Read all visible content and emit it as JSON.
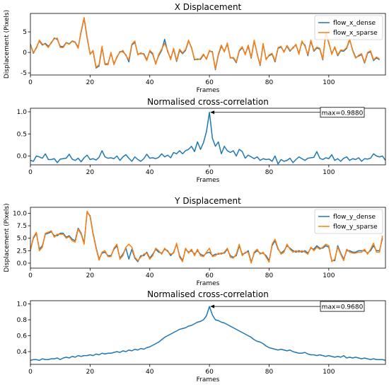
{
  "colors": {
    "dense": "#1f77b4",
    "sparse": "#ff7f0e"
  },
  "chart_data": [
    {
      "type": "line",
      "title": "X Displacement",
      "xlabel": "Frames",
      "ylabel": "Displacement (Pixels)",
      "xlim": [
        0,
        119
      ],
      "ylim": [
        -5.5,
        9.5
      ],
      "xticks": [
        0,
        20,
        40,
        60,
        80,
        100
      ],
      "yticks": [
        -5,
        0,
        5
      ],
      "legend": "upper-right",
      "series": [
        {
          "name": "flow_x_dense",
          "values": [
            2.0,
            -0.2,
            1.2,
            2.8,
            1.8,
            2.2,
            1.5,
            2.3,
            3.5,
            3.2,
            1.5,
            1.4,
            2.4,
            2.1,
            2.8,
            2.5,
            1.2,
            5.0,
            8.3,
            3.5,
            -0.3,
            0.3,
            -3.8,
            -3.3,
            1.2,
            -2.8,
            -2.8,
            -0.2,
            -2.8,
            -1.2,
            0.2,
            0.2,
            -0.6,
            -2.3,
            1.8,
            2.5,
            -0.4,
            -0.3,
            -0.3,
            -1.8,
            0.3,
            -0.5,
            -2.7,
            -0.8,
            0.5,
            3.2,
            0.2,
            -1.5,
            0.8,
            -2.2,
            0.5,
            -0.3,
            0.5,
            2.8,
            1.2,
            -1.8,
            -1.6,
            -1.7,
            -0.6,
            -1.5,
            0.3,
            0.2,
            -4.2,
            -0.6,
            1.5,
            0.3,
            2.0,
            -1.2,
            -1.4,
            -2.5,
            0.3,
            1.2,
            -0.4,
            1.5,
            -1.4,
            2.8,
            -0.3,
            -3.2,
            2.0,
            -1.6,
            -0.8,
            -0.4,
            -2.3,
            1.0,
            1.3,
            0.2,
            1.5,
            0.3,
            1.2,
            1.8,
            -0.3,
            2.5,
            1.8,
            -0.8,
            2.8,
            0.3,
            1.1,
            0.8,
            -1.8,
            4.8,
            2.3,
            -0.3,
            1.2,
            -0.8,
            0.4,
            0.3,
            1.0,
            3.1,
            0.6,
            -1.2,
            -0.9,
            -0.5,
            -2.6,
            -0.2,
            0.2,
            -2.0,
            -1.3,
            -1.8
          ],
          "color_key": "dense"
        },
        {
          "name": "flow_x_sparse",
          "values": [
            1.8,
            0.0,
            1.0,
            3.0,
            2.0,
            2.0,
            1.2,
            2.5,
            3.3,
            3.5,
            1.2,
            1.2,
            2.3,
            2.0,
            2.7,
            2.4,
            1.0,
            5.2,
            8.5,
            3.8,
            -0.5,
            0.5,
            -3.6,
            -3.0,
            1.5,
            -3.0,
            -3.0,
            0.0,
            -3.0,
            -1.0,
            0.0,
            0.5,
            -0.8,
            -1.8,
            2.0,
            2.8,
            -0.6,
            -0.1,
            -0.5,
            -2.0,
            0.5,
            -0.2,
            -2.9,
            -0.5,
            0.8,
            2.2,
            0.5,
            -1.8,
            1.0,
            -2.0,
            0.8,
            -0.1,
            0.7,
            3.0,
            1.0,
            -1.6,
            -1.8,
            -1.5,
            -0.4,
            -1.7,
            0.5,
            0.0,
            -4.0,
            -0.4,
            1.8,
            0.1,
            2.3,
            -1.4,
            -1.2,
            -2.3,
            0.5,
            1.4,
            -0.6,
            1.8,
            -1.2,
            3.0,
            -0.5,
            -3.0,
            2.2,
            -1.8,
            -0.6,
            -0.2,
            -2.1,
            1.2,
            1.5,
            0.0,
            1.7,
            0.5,
            1.0,
            2.0,
            -0.5,
            2.8,
            1.5,
            -0.5,
            3.0,
            0.5,
            1.3,
            1.0,
            -1.6,
            4.5,
            2.5,
            -0.5,
            1.4,
            -0.6,
            0.6,
            0.5,
            1.2,
            3.3,
            0.4,
            -1.4,
            -0.7,
            -0.3,
            -2.4,
            0.0,
            0.4,
            -1.8,
            -1.1,
            -1.6
          ],
          "color_key": "sparse"
        }
      ]
    },
    {
      "type": "line",
      "title": "Normalised cross-correlation",
      "xlabel": "Frames",
      "xlim": [
        0,
        119
      ],
      "ylim": [
        -0.2,
        1.08
      ],
      "xticks": [
        0,
        20,
        40,
        60,
        80,
        100
      ],
      "yticks": [
        0.0,
        0.5,
        1.0
      ],
      "annotation": {
        "text": "max=0.9880",
        "x": 60,
        "y": 0.988
      },
      "series": [
        {
          "values": [
            -0.1,
            -0.12,
            0.0,
            -0.02,
            -0.05,
            0.05,
            -0.08,
            -0.08,
            -0.06,
            -0.15,
            -0.07,
            -0.06,
            -0.05,
            0.04,
            -0.07,
            -0.1,
            -0.05,
            -0.13,
            -0.04,
            0.02,
            -0.08,
            -0.06,
            -0.09,
            -0.03,
            0.12,
            -0.02,
            -0.05,
            -0.04,
            -0.06,
            0.0,
            -0.1,
            -0.02,
            0.03,
            -0.05,
            -0.12,
            -0.02,
            -0.08,
            -0.12,
            -0.06,
            0.04,
            -0.05,
            -0.04,
            -0.06,
            -0.03,
            0.05,
            -0.02,
            0.02,
            -0.04,
            0.08,
            0.05,
            0.12,
            0.05,
            0.12,
            0.15,
            0.22,
            0.1,
            0.32,
            0.15,
            0.3,
            0.55,
            0.988,
            0.4,
            0.22,
            0.32,
            0.05,
            0.22,
            0.12,
            0.08,
            0.12,
            0.0,
            0.15,
            0.1,
            -0.05,
            0.02,
            -0.02,
            -0.06,
            -0.02,
            -0.1,
            -0.06,
            -0.08,
            -0.07,
            -0.12,
            0.0,
            -0.18,
            -0.08,
            -0.12,
            -0.1,
            -0.05,
            -0.15,
            -0.08,
            -0.02,
            -0.06,
            -0.1,
            -0.05,
            -0.04,
            -0.03,
            0.1,
            -0.05,
            -0.08,
            -0.04,
            -0.06,
            0.03,
            -0.1,
            -0.06,
            -0.12,
            -0.05,
            -0.02,
            -0.1,
            -0.06,
            -0.08,
            -0.04,
            -0.12,
            -0.06,
            -0.07,
            -0.05,
            0.05,
            0.0,
            -0.02,
            0.0,
            -0.1
          ],
          "color_key": "dense"
        }
      ]
    },
    {
      "type": "line",
      "title": "Y Displacement",
      "xlabel": "Frames",
      "ylabel": "Displacement (Pixels)",
      "xlim": [
        0,
        119
      ],
      "ylim": [
        -1.0,
        11.2
      ],
      "xticks": [
        0,
        20,
        40,
        60,
        80,
        100
      ],
      "yticks": [
        0.0,
        2.5,
        5.0,
        7.5,
        10.0
      ],
      "legend": "upper-right",
      "series": [
        {
          "name": "flow_y_dense",
          "values": [
            2.8,
            5.0,
            6.0,
            2.8,
            3.5,
            5.8,
            6.0,
            6.3,
            5.5,
            5.5,
            6.0,
            6.0,
            5.2,
            5.5,
            4.8,
            4.5,
            7.0,
            6.0,
            4.0,
            10.2,
            9.5,
            6.0,
            3.2,
            0.8,
            2.0,
            2.2,
            1.5,
            1.5,
            2.8,
            3.5,
            1.0,
            1.8,
            3.0,
            0.8,
            2.8,
            1.0,
            0.3,
            1.5,
            1.5,
            2.2,
            1.0,
            1.8,
            2.8,
            2.2,
            2.0,
            2.8,
            2.5,
            1.5,
            2.2,
            3.8,
            1.5,
            0.5,
            2.8,
            2.2,
            2.5,
            1.8,
            2.5,
            1.8,
            1.5,
            2.0,
            2.2,
            1.5,
            1.8,
            1.8,
            2.0,
            2.0,
            2.8,
            1.5,
            1.2,
            1.5,
            3.5,
            1.8,
            2.0,
            2.5,
            0.2,
            2.0,
            2.5,
            2.0,
            2.0,
            1.5,
            0.5,
            3.5,
            4.5,
            2.8,
            2.0,
            2.5,
            3.5,
            3.0,
            2.5,
            2.2,
            2.5,
            2.2,
            2.5,
            2.0,
            3.0,
            2.8,
            3.5,
            3.0,
            3.0,
            3.5,
            3.2,
            0.5,
            0.5,
            3.5,
            2.0,
            0.8,
            2.5,
            2.5,
            2.2,
            2.2,
            2.5,
            2.5,
            2.5,
            2.0,
            2.5,
            3.5,
            2.5,
            2.5,
            5.0
          ],
          "color_key": "dense"
        },
        {
          "name": "flow_y_sparse",
          "values": [
            2.5,
            5.2,
            6.2,
            2.5,
            3.2,
            6.0,
            6.2,
            6.5,
            5.2,
            5.8,
            5.8,
            5.8,
            5.0,
            5.3,
            4.5,
            4.2,
            6.8,
            5.8,
            3.8,
            10.4,
            9.3,
            5.8,
            3.0,
            0.6,
            2.2,
            2.5,
            1.3,
            1.3,
            3.0,
            3.8,
            0.8,
            1.5,
            3.2,
            3.8,
            3.2,
            1.2,
            0.5,
            1.2,
            1.8,
            2.0,
            0.8,
            1.5,
            3.0,
            2.5,
            1.8,
            3.0,
            2.3,
            1.8,
            2.0,
            4.0,
            1.2,
            0.3,
            3.0,
            2.0,
            2.8,
            1.5,
            2.8,
            1.5,
            1.3,
            2.2,
            3.0,
            1.3,
            1.5,
            2.0,
            1.8,
            2.2,
            3.0,
            1.2,
            1.0,
            1.8,
            3.8,
            1.5,
            2.2,
            2.2,
            0.0,
            2.2,
            2.8,
            1.8,
            2.2,
            1.2,
            0.2,
            3.8,
            4.8,
            3.0,
            1.8,
            2.2,
            3.8,
            2.8,
            2.2,
            2.5,
            2.2,
            2.5,
            2.2,
            1.8,
            3.2,
            2.5,
            3.2,
            2.8,
            3.2,
            3.8,
            3.5,
            0.3,
            0.8,
            3.2,
            1.8,
            0.5,
            2.8,
            2.2,
            2.0,
            2.0,
            2.2,
            2.2,
            2.8,
            1.8,
            2.8,
            4.0,
            2.2,
            2.2,
            5.5
          ],
          "color_key": "sparse"
        }
      ]
    },
    {
      "type": "line",
      "title": "Normalised cross-correlation",
      "xlabel": "Frames",
      "xlim": [
        0,
        119
      ],
      "ylim": [
        0.24,
        1.04
      ],
      "xticks": [
        0,
        20,
        40,
        60,
        80,
        100
      ],
      "yticks": [
        0.4,
        0.6,
        0.8,
        1.0
      ],
      "annotation": {
        "text": "max=0.9680",
        "x": 60,
        "y": 0.968
      },
      "series": [
        {
          "values": [
            0.29,
            0.3,
            0.3,
            0.29,
            0.31,
            0.3,
            0.3,
            0.31,
            0.31,
            0.32,
            0.3,
            0.32,
            0.33,
            0.32,
            0.34,
            0.33,
            0.35,
            0.34,
            0.35,
            0.35,
            0.36,
            0.35,
            0.37,
            0.36,
            0.38,
            0.37,
            0.38,
            0.38,
            0.39,
            0.4,
            0.39,
            0.41,
            0.4,
            0.42,
            0.41,
            0.43,
            0.42,
            0.44,
            0.43,
            0.45,
            0.46,
            0.48,
            0.5,
            0.52,
            0.55,
            0.58,
            0.6,
            0.62,
            0.64,
            0.66,
            0.68,
            0.69,
            0.7,
            0.72,
            0.73,
            0.75,
            0.77,
            0.78,
            0.8,
            0.85,
            0.968,
            0.86,
            0.8,
            0.79,
            0.77,
            0.76,
            0.74,
            0.72,
            0.7,
            0.68,
            0.66,
            0.64,
            0.62,
            0.6,
            0.58,
            0.55,
            0.53,
            0.52,
            0.5,
            0.47,
            0.45,
            0.44,
            0.43,
            0.42,
            0.43,
            0.42,
            0.41,
            0.42,
            0.4,
            0.39,
            0.38,
            0.38,
            0.39,
            0.37,
            0.36,
            0.36,
            0.35,
            0.36,
            0.35,
            0.34,
            0.35,
            0.34,
            0.33,
            0.34,
            0.33,
            0.35,
            0.32,
            0.33,
            0.32,
            0.33,
            0.32,
            0.31,
            0.32,
            0.31,
            0.3,
            0.31,
            0.3,
            0.3,
            0.3,
            0.29
          ],
          "color_key": "dense"
        }
      ]
    }
  ]
}
